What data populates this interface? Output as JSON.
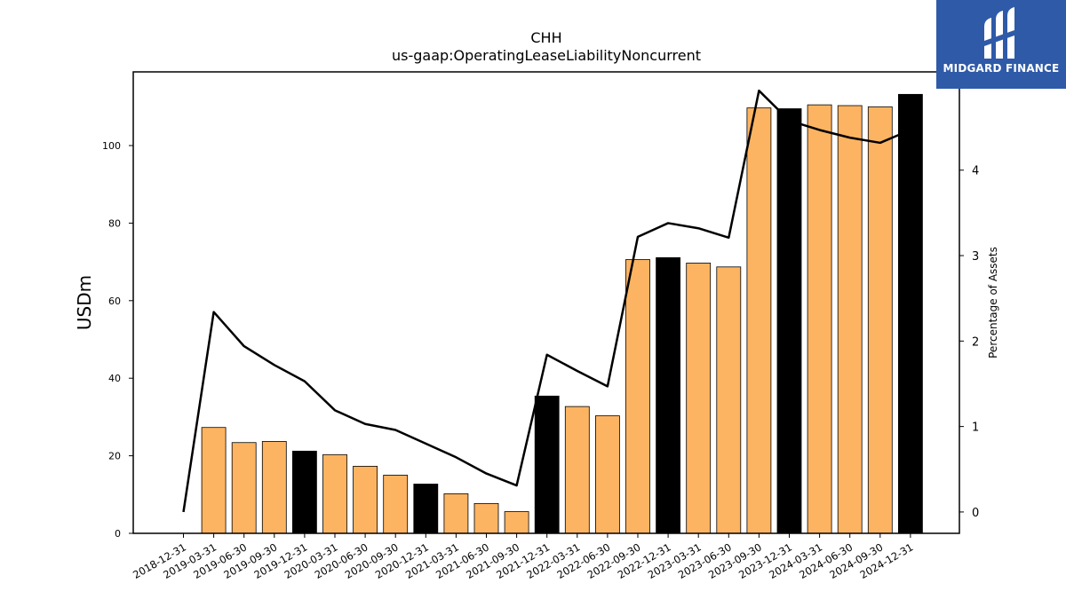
{
  "brand": {
    "name": "MIDGARD FINANCE",
    "color": "#2f5aa8"
  },
  "chart_data": {
    "type": "bar",
    "title": "CHH",
    "subtitle": "us-gaap:OperatingLeaseLiabilityNoncurrent",
    "ylabel": "USDm",
    "y2label": "Percentage of Assets",
    "ylim": [
      0,
      119
    ],
    "y2lim": [
      -0.25,
      5.15
    ],
    "yticks": [
      0,
      20,
      40,
      60,
      80,
      100
    ],
    "y2ticks": [
      0,
      1,
      2,
      3,
      4
    ],
    "categories": [
      "2018-12-31",
      "2019-03-31",
      "2019-06-30",
      "2019-09-30",
      "2019-12-31",
      "2020-03-31",
      "2020-06-30",
      "2020-09-30",
      "2020-12-31",
      "2021-03-31",
      "2021-06-30",
      "2021-09-30",
      "2021-12-31",
      "2022-03-31",
      "2022-06-30",
      "2022-09-30",
      "2022-12-31",
      "2023-03-31",
      "2023-06-30",
      "2023-09-30",
      "2023-12-31",
      "2024-03-31",
      "2024-06-30",
      "2024-09-30",
      "2024-12-31"
    ],
    "series": [
      {
        "kind": "bar",
        "values": [
          0,
          27.3,
          23.4,
          23.7,
          21.2,
          20.3,
          17.3,
          15.0,
          12.7,
          10.2,
          7.7,
          5.6,
          35.4,
          32.7,
          30.3,
          70.6,
          71.1,
          69.7,
          68.7,
          109.7,
          109.5,
          110.5,
          110.3,
          110.0,
          113.2
        ],
        "annual_flags": [
          false,
          false,
          false,
          false,
          true,
          false,
          false,
          false,
          true,
          false,
          false,
          false,
          true,
          false,
          false,
          false,
          true,
          false,
          false,
          false,
          true,
          false,
          false,
          false,
          true
        ],
        "color": "#fdb462",
        "annual_color": "#000000"
      },
      {
        "kind": "line",
        "axis": "right",
        "values": [
          0.0,
          2.34,
          1.94,
          1.72,
          1.53,
          1.19,
          1.03,
          0.96,
          0.8,
          0.64,
          0.45,
          0.31,
          1.84,
          1.65,
          1.47,
          3.22,
          3.38,
          3.32,
          3.21,
          4.93,
          4.58,
          4.47,
          4.38,
          4.32,
          4.47
        ],
        "color": "#000000"
      }
    ],
    "grid": false,
    "legend": "none"
  }
}
